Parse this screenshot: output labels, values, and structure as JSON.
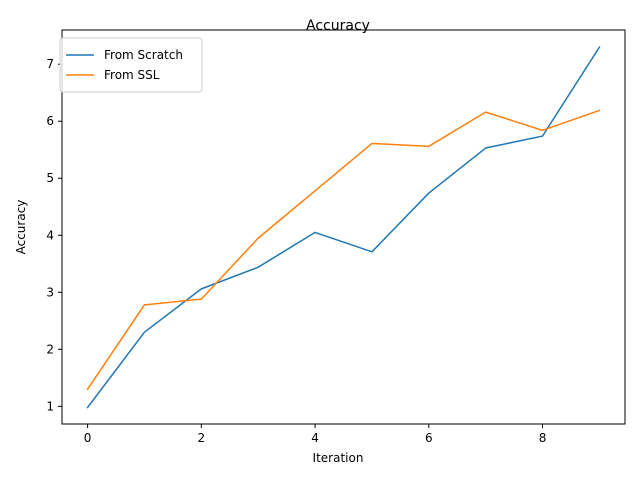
{
  "chart_data": {
    "type": "line",
    "title": "Accuracy",
    "xlabel": "Iteration",
    "ylabel": "Accuracy",
    "xlim": [
      -0.45,
      9.45
    ],
    "ylim": [
      0.69,
      7.6
    ],
    "xticks": [
      0,
      2,
      4,
      6,
      8
    ],
    "yticks": [
      1,
      2,
      3,
      4,
      5,
      6,
      7
    ],
    "grid": false,
    "legend_position": "upper-left",
    "x": [
      0,
      1,
      2,
      3,
      4,
      5,
      6,
      7,
      8,
      9
    ],
    "series": [
      {
        "name": "From Scratch",
        "color": "#1f77b4",
        "values": [
          0.98,
          2.3,
          3.06,
          3.44,
          4.05,
          3.71,
          4.74,
          5.53,
          5.74,
          7.3
        ]
      },
      {
        "name": "From SSL",
        "color": "#ff7f0e",
        "values": [
          1.3,
          2.78,
          2.88,
          3.95,
          4.78,
          5.61,
          5.56,
          6.16,
          5.84,
          6.19
        ]
      }
    ]
  }
}
